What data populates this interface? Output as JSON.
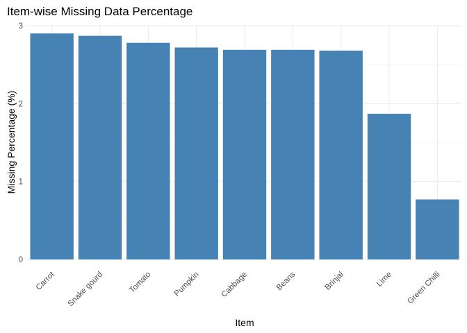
{
  "chart_data": {
    "type": "bar",
    "title": "Item-wise Missing Data Percentage",
    "xlabel": "Item",
    "ylabel": "Missing Percentage (%)",
    "categories": [
      "Carrot",
      "Snake gourd",
      "Tomato",
      "Pumpkin",
      "Cabbage",
      "Beans",
      "Brinjal",
      "Lime",
      "Green Chilli"
    ],
    "values": [
      2.9,
      2.87,
      2.78,
      2.72,
      2.69,
      2.69,
      2.68,
      1.87,
      0.77
    ],
    "ylim": [
      0,
      3
    ],
    "yticks": [
      0,
      1,
      2,
      3
    ],
    "grid": true,
    "bar_color": "#4682B4",
    "legend": "none"
  }
}
